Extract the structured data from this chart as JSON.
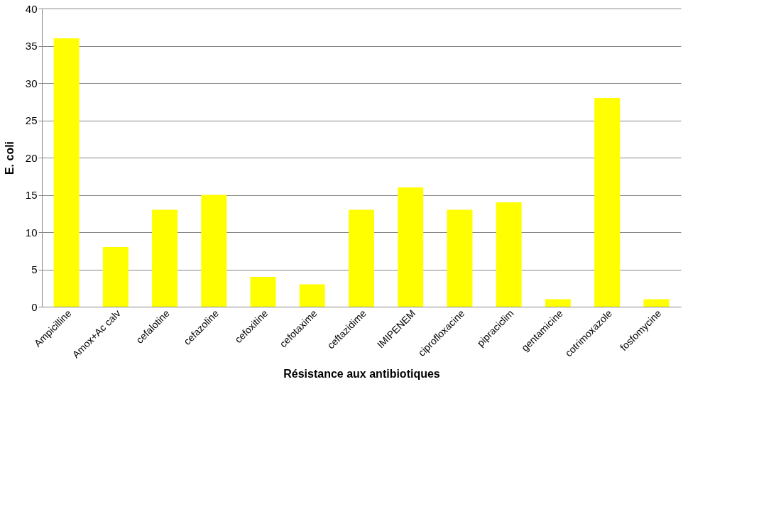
{
  "chart_data": {
    "type": "bar",
    "xlabel": "Résistance aux antibiotiques",
    "ylabel": "E. coli",
    "categories": [
      "Ampicilline",
      "Amox+Ac calv",
      "cefalotine",
      "cefazoline",
      "cefoxitine",
      "cefotaxime",
      "ceftazidime",
      "IMIPENEM",
      "ciprofloxacine",
      "pipraciclim",
      "gentamicine",
      "cotrimoxazole",
      "fosfomycine"
    ],
    "values": [
      36,
      8,
      13,
      15,
      4,
      3,
      13,
      16,
      13,
      14,
      1,
      28,
      1
    ],
    "color": "#ffff00",
    "ylim": [
      0,
      40
    ],
    "yticks": [
      0,
      5,
      10,
      15,
      20,
      25,
      30,
      35,
      40
    ],
    "grid": "y"
  }
}
